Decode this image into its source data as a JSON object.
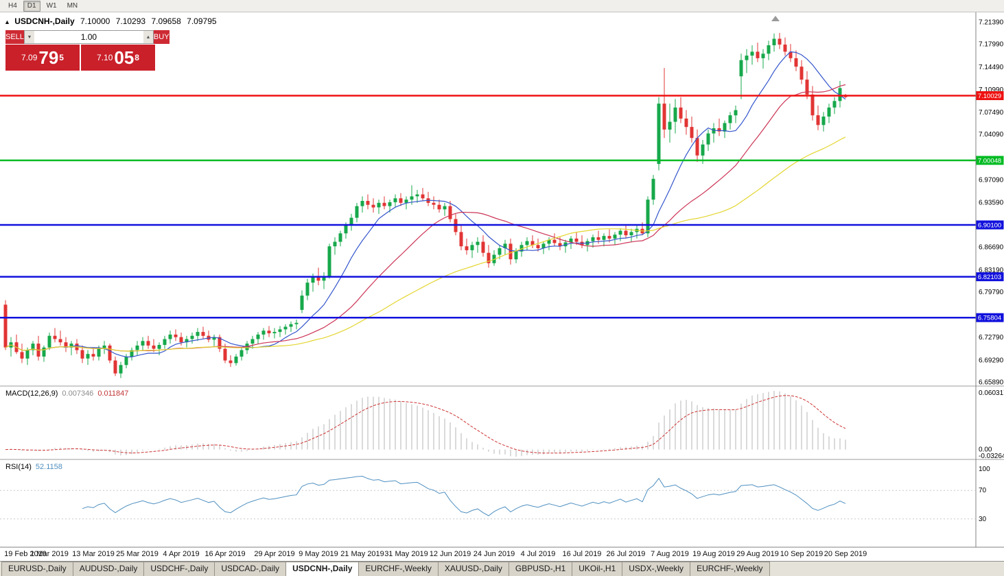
{
  "toolbar": {
    "timeframes": [
      {
        "label": "H4",
        "active": false
      },
      {
        "label": "D1",
        "active": true
      },
      {
        "label": "W1",
        "active": false
      },
      {
        "label": "MN",
        "active": false
      }
    ]
  },
  "chart": {
    "title": "USDCNH-,Daily",
    "ohlc": {
      "open": "7.10000",
      "high": "7.10293",
      "low": "7.09658",
      "close": "7.09795"
    },
    "colors": {
      "up": "#17a84b",
      "down": "#e23434",
      "axis_text": "#000000"
    },
    "trade_panel": {
      "sell_label": "SELL",
      "buy_label": "BUY",
      "volume": "1.00",
      "sell_price": {
        "big_figure": "7.09",
        "pips": "79",
        "pipette": "5"
      },
      "buy_price": {
        "big_figure": "7.10",
        "pips": "05",
        "pipette": "8"
      }
    }
  },
  "macd_panel": {
    "label": "MACD(12,26,9)",
    "value_main": "0.007346",
    "value_signal": "0.011847",
    "axis": [
      "0.060317",
      "0.00",
      "-0.032648"
    ]
  },
  "rsi_panel": {
    "label": "RSI(14)",
    "value": "52.1158",
    "axis": [
      "100",
      "70",
      "30"
    ]
  },
  "bottom_tabs": [
    {
      "label": "EURUSD-,Daily",
      "active": false
    },
    {
      "label": "AUDUSD-,Daily",
      "active": false
    },
    {
      "label": "USDCHF-,Daily",
      "active": false
    },
    {
      "label": "USDCAD-,Daily",
      "active": false
    },
    {
      "label": "USDCNH-,Daily",
      "active": true
    },
    {
      "label": "EURCHF-,Weekly",
      "active": false
    },
    {
      "label": "XAUUSD-,Daily",
      "active": false
    },
    {
      "label": "GBPUSD-,H1",
      "active": false
    },
    {
      "label": "UKOil-,H1",
      "active": false
    },
    {
      "label": "USDX-,Weekly",
      "active": false
    },
    {
      "label": "EURCHF-,Weekly",
      "active": false
    }
  ],
  "chart_data": {
    "type": "candlestick",
    "symbol": "USDCNH",
    "timeframe": "Daily",
    "ylim": [
      6.6589,
      7.2139
    ],
    "y_ticks": [
      "7.21390",
      "7.17990",
      "7.14490",
      "7.10990",
      "7.07490",
      "7.04090",
      "6.97090",
      "6.93590",
      "6.86690",
      "6.83190",
      "6.79790",
      "6.72790",
      "6.69290",
      "6.65890"
    ],
    "levels": [
      {
        "value": 7.10029,
        "label": "7.10029",
        "color": "#ee1111"
      },
      {
        "value": 7.00048,
        "label": "7.00048",
        "color": "#00bb22"
      },
      {
        "value": 6.901,
        "label": "6.90100",
        "color": "#1111dd"
      },
      {
        "value": 6.82103,
        "label": "6.82103",
        "color": "#1111dd"
      },
      {
        "value": 6.75804,
        "label": "6.75804",
        "color": "#1111dd"
      }
    ],
    "date_ticks": [
      [
        "19 Feb 2019",
        0
      ],
      [
        "1 Mar 2019",
        8
      ],
      [
        "13 Mar 2019",
        16
      ],
      [
        "25 Mar 2019",
        24
      ],
      [
        "4 Apr 2019",
        32
      ],
      [
        "16 Apr 2019",
        40
      ],
      [
        "29 Apr 2019",
        49
      ],
      [
        "9 May 2019",
        57
      ],
      [
        "21 May 2019",
        65
      ],
      [
        "31 May 2019",
        73
      ],
      [
        "12 Jun 2019",
        81
      ],
      [
        "24 Jun 2019",
        89
      ],
      [
        "4 Jul 2019",
        97
      ],
      [
        "16 Jul 2019",
        105
      ],
      [
        "26 Jul 2019",
        113
      ],
      [
        "7 Aug 2019",
        121
      ],
      [
        "19 Aug 2019",
        129
      ],
      [
        "29 Aug 2019",
        137
      ],
      [
        "10 Sep 2019",
        145
      ],
      [
        "20 Sep 2019",
        153
      ]
    ],
    "indicators": {
      "sma": [
        {
          "period": 10,
          "color": "#3355cc"
        },
        {
          "period": 25,
          "color": "#cc3355"
        },
        {
          "period": 50,
          "color": "#e3d52e"
        }
      ],
      "macd": {
        "fast": 12,
        "slow": 26,
        "signal": 9,
        "hist_color": "#b6b6b6",
        "signal_color": "#cc3333"
      },
      "rsi": {
        "period": 14,
        "levels": [
          70,
          30
        ],
        "color": "#4e8fc0"
      }
    },
    "candles": [
      [
        6.778,
        6.785,
        6.708,
        6.712
      ],
      [
        6.712,
        6.728,
        6.698,
        6.72
      ],
      [
        6.72,
        6.732,
        6.702,
        6.705
      ],
      [
        6.705,
        6.718,
        6.688,
        6.695
      ],
      [
        6.695,
        6.712,
        6.685,
        6.708
      ],
      [
        6.708,
        6.722,
        6.7,
        6.718
      ],
      [
        6.718,
        6.73,
        6.692,
        6.698
      ],
      [
        6.698,
        6.715,
        6.69,
        6.712
      ],
      [
        6.712,
        6.735,
        6.708,
        6.73
      ],
      [
        6.73,
        6.742,
        6.72,
        6.725
      ],
      [
        6.725,
        6.738,
        6.715,
        6.72
      ],
      [
        6.72,
        6.728,
        6.705,
        6.712
      ],
      [
        6.712,
        6.722,
        6.7,
        6.718
      ],
      [
        6.718,
        6.725,
        6.702,
        6.708
      ],
      [
        6.708,
        6.715,
        6.688,
        6.695
      ],
      [
        6.695,
        6.708,
        6.685,
        6.702
      ],
      [
        6.702,
        6.712,
        6.692,
        6.698
      ],
      [
        6.698,
        6.715,
        6.692,
        6.71
      ],
      [
        6.71,
        6.722,
        6.702,
        6.715
      ],
      [
        6.715,
        6.718,
        6.688,
        6.692
      ],
      [
        6.692,
        6.698,
        6.668,
        6.672
      ],
      [
        6.672,
        6.69,
        6.665,
        6.685
      ],
      [
        6.685,
        6.702,
        6.68,
        6.698
      ],
      [
        6.698,
        6.712,
        6.692,
        6.708
      ],
      [
        6.708,
        6.722,
        6.7,
        6.715
      ],
      [
        6.715,
        6.728,
        6.708,
        6.722
      ],
      [
        6.722,
        6.73,
        6.71,
        6.715
      ],
      [
        6.715,
        6.725,
        6.705,
        6.71
      ],
      [
        6.71,
        6.72,
        6.7,
        6.716
      ],
      [
        6.716,
        6.73,
        6.71,
        6.725
      ],
      [
        6.725,
        6.738,
        6.718,
        6.732
      ],
      [
        6.732,
        6.74,
        6.722,
        6.728
      ],
      [
        6.728,
        6.735,
        6.715,
        6.72
      ],
      [
        6.72,
        6.73,
        6.712,
        6.725
      ],
      [
        6.725,
        6.735,
        6.718,
        6.73
      ],
      [
        6.73,
        6.742,
        6.722,
        6.736
      ],
      [
        6.736,
        6.744,
        6.726,
        6.73
      ],
      [
        6.73,
        6.738,
        6.72,
        6.724
      ],
      [
        6.724,
        6.732,
        6.714,
        6.728
      ],
      [
        6.728,
        6.732,
        6.705,
        6.71
      ],
      [
        6.71,
        6.718,
        6.688,
        6.692
      ],
      [
        6.692,
        6.7,
        6.682,
        6.688
      ],
      [
        6.688,
        6.702,
        6.684,
        6.698
      ],
      [
        6.698,
        6.712,
        6.692,
        6.708
      ],
      [
        6.708,
        6.722,
        6.702,
        6.718
      ],
      [
        6.718,
        6.73,
        6.71,
        6.725
      ],
      [
        6.725,
        6.736,
        6.718,
        6.732
      ],
      [
        6.732,
        6.742,
        6.724,
        6.738
      ],
      [
        6.738,
        6.745,
        6.728,
        6.734
      ],
      [
        6.734,
        6.742,
        6.726,
        6.736
      ],
      [
        6.736,
        6.745,
        6.728,
        6.74
      ],
      [
        6.74,
        6.748,
        6.732,
        6.744
      ],
      [
        6.744,
        6.752,
        6.736,
        6.748
      ],
      [
        6.748,
        6.755,
        6.74,
        6.75
      ],
      [
        6.77,
        6.8,
        6.765,
        6.792
      ],
      [
        6.792,
        6.818,
        6.785,
        6.812
      ],
      [
        6.812,
        6.826,
        6.798,
        6.82
      ],
      [
        6.82,
        6.835,
        6.808,
        6.815
      ],
      [
        6.815,
        6.828,
        6.802,
        6.822
      ],
      [
        6.822,
        6.872,
        6.818,
        6.868
      ],
      [
        6.868,
        6.882,
        6.855,
        6.875
      ],
      [
        6.875,
        6.892,
        6.868,
        6.888
      ],
      [
        6.888,
        6.905,
        6.88,
        6.9
      ],
      [
        6.9,
        6.918,
        6.892,
        6.912
      ],
      [
        6.912,
        6.935,
        6.905,
        6.93
      ],
      [
        6.93,
        6.945,
        6.92,
        6.938
      ],
      [
        6.938,
        6.948,
        6.925,
        6.932
      ],
      [
        6.932,
        6.942,
        6.92,
        6.928
      ],
      [
        6.928,
        6.94,
        6.918,
        6.935
      ],
      [
        6.935,
        6.945,
        6.925,
        6.93
      ],
      [
        6.93,
        6.94,
        6.92,
        6.936
      ],
      [
        6.936,
        6.948,
        6.928,
        6.942
      ],
      [
        6.942,
        6.95,
        6.93,
        6.935
      ],
      [
        6.935,
        6.945,
        6.925,
        6.94
      ],
      [
        6.94,
        6.962,
        6.932,
        6.945
      ],
      [
        6.945,
        6.955,
        6.935,
        6.948
      ],
      [
        6.948,
        6.958,
        6.938,
        6.942
      ],
      [
        6.942,
        6.952,
        6.93,
        6.935
      ],
      [
        6.935,
        6.945,
        6.925,
        6.932
      ],
      [
        6.932,
        6.94,
        6.92,
        6.925
      ],
      [
        6.925,
        6.935,
        6.915,
        6.93
      ],
      [
        6.93,
        6.938,
        6.905,
        6.91
      ],
      [
        6.91,
        6.918,
        6.885,
        6.89
      ],
      [
        6.89,
        6.9,
        6.862,
        6.868
      ],
      [
        6.868,
        6.88,
        6.855,
        6.862
      ],
      [
        6.862,
        6.875,
        6.85,
        6.87
      ],
      [
        6.87,
        6.882,
        6.858,
        6.875
      ],
      [
        6.875,
        6.885,
        6.852,
        6.858
      ],
      [
        6.858,
        6.87,
        6.835,
        6.842
      ],
      [
        6.842,
        6.862,
        6.838,
        6.855
      ],
      [
        6.855,
        6.87,
        6.848,
        6.865
      ],
      [
        6.865,
        6.878,
        6.855,
        6.872
      ],
      [
        6.872,
        6.88,
        6.84,
        6.848
      ],
      [
        6.848,
        6.865,
        6.842,
        6.86
      ],
      [
        6.86,
        6.875,
        6.852,
        6.87
      ],
      [
        6.87,
        6.882,
        6.862,
        6.876
      ],
      [
        6.876,
        6.885,
        6.865,
        6.87
      ],
      [
        6.87,
        6.88,
        6.86,
        6.865
      ],
      [
        6.865,
        6.876,
        6.856,
        6.872
      ],
      [
        6.872,
        6.882,
        6.862,
        6.878
      ],
      [
        6.878,
        6.888,
        6.868,
        6.873
      ],
      [
        6.873,
        6.882,
        6.862,
        6.868
      ],
      [
        6.868,
        6.878,
        6.858,
        6.874
      ],
      [
        6.874,
        6.884,
        6.864,
        6.88
      ],
      [
        6.88,
        6.89,
        6.87,
        6.875
      ],
      [
        6.875,
        6.885,
        6.865,
        6.87
      ],
      [
        6.87,
        6.88,
        6.86,
        6.876
      ],
      [
        6.876,
        6.886,
        6.866,
        6.882
      ],
      [
        6.882,
        6.892,
        6.872,
        6.878
      ],
      [
        6.878,
        6.888,
        6.868,
        6.884
      ],
      [
        6.884,
        6.894,
        6.874,
        6.88
      ],
      [
        6.88,
        6.89,
        6.87,
        6.886
      ],
      [
        6.886,
        6.896,
        6.876,
        6.892
      ],
      [
        6.892,
        6.9,
        6.88,
        6.885
      ],
      [
        6.885,
        6.895,
        6.875,
        6.89
      ],
      [
        6.89,
        6.9,
        6.88,
        6.895
      ],
      [
        6.895,
        6.905,
        6.885,
        6.888
      ],
      [
        6.888,
        6.945,
        6.882,
        6.94
      ],
      [
        6.94,
        6.978,
        6.932,
        6.972
      ],
      [
        6.995,
        7.098,
        6.985,
        7.088
      ],
      [
        7.088,
        7.143,
        7.035,
        7.048
      ],
      [
        7.048,
        7.088,
        7.028,
        7.06
      ],
      [
        7.06,
        7.095,
        7.042,
        7.082
      ],
      [
        7.082,
        7.098,
        7.058,
        7.065
      ],
      [
        7.065,
        7.078,
        7.04,
        7.052
      ],
      [
        7.052,
        7.068,
        7.028,
        7.035
      ],
      [
        7.035,
        7.048,
        6.998,
        7.008
      ],
      [
        7.008,
        7.032,
        6.995,
        7.025
      ],
      [
        7.025,
        7.048,
        7.015,
        7.042
      ],
      [
        7.042,
        7.058,
        7.028,
        7.05
      ],
      [
        7.05,
        7.065,
        7.038,
        7.045
      ],
      [
        7.045,
        7.062,
        7.035,
        7.058
      ],
      [
        7.058,
        7.075,
        7.048,
        7.07
      ],
      [
        7.07,
        7.085,
        7.058,
        7.078
      ],
      [
        7.13,
        7.165,
        7.095,
        7.155
      ],
      [
        7.155,
        7.172,
        7.135,
        7.162
      ],
      [
        7.162,
        7.178,
        7.148,
        7.168
      ],
      [
        7.168,
        7.182,
        7.152,
        7.158
      ],
      [
        7.158,
        7.172,
        7.142,
        7.165
      ],
      [
        7.165,
        7.185,
        7.155,
        7.178
      ],
      [
        7.178,
        7.196,
        7.168,
        7.188
      ],
      [
        7.188,
        7.197,
        7.172,
        7.179
      ],
      [
        7.179,
        7.19,
        7.162,
        7.168
      ],
      [
        7.168,
        7.18,
        7.152,
        7.158
      ],
      [
        7.158,
        7.17,
        7.138,
        7.145
      ],
      [
        7.145,
        7.155,
        7.118,
        7.125
      ],
      [
        7.125,
        7.138,
        7.095,
        7.102
      ],
      [
        7.102,
        7.115,
        7.062,
        7.07
      ],
      [
        7.07,
        7.085,
        7.047,
        7.055
      ],
      [
        7.055,
        7.075,
        7.045,
        7.068
      ],
      [
        7.068,
        7.088,
        7.058,
        7.082
      ],
      [
        7.082,
        7.098,
        7.072,
        7.092
      ],
      [
        7.092,
        7.123,
        7.082,
        7.112
      ],
      [
        7.1,
        7.103,
        7.0966,
        7.098
      ]
    ]
  }
}
